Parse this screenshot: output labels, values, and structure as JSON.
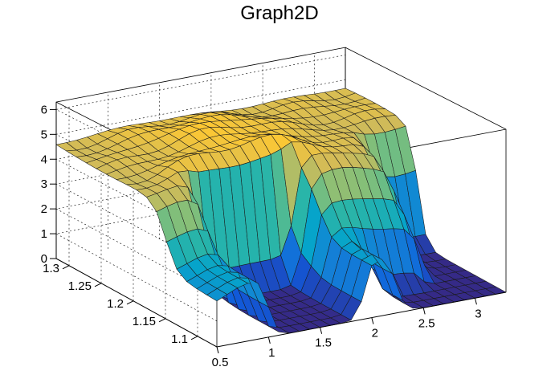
{
  "chart_data": {
    "type": "surface3d",
    "title": "Graph2D",
    "x_axis": {
      "range": [
        0.5,
        3.3
      ],
      "ticks": [
        "0.5",
        "1",
        "1.5",
        "2",
        "2.5",
        "3"
      ],
      "tick_values": [
        0.5,
        1,
        1.5,
        2,
        2.5,
        3
      ]
    },
    "y_axis": {
      "range": [
        1.07,
        1.32
      ],
      "ticks": [
        "1.1",
        "1.15",
        "1.2",
        "1.25",
        "1.3"
      ],
      "tick_values": [
        1.1,
        1.15,
        1.2,
        1.25,
        1.3
      ]
    },
    "z_axis": {
      "range": [
        0,
        6.3
      ],
      "ticks": [
        "0",
        "1",
        "2",
        "3",
        "4",
        "5",
        "6"
      ],
      "tick_values": [
        0,
        1,
        2,
        3,
        4,
        5,
        6
      ]
    },
    "grid": true,
    "colormap": [
      "#352a87",
      "#0f5cdd",
      "#1481d6",
      "#06a4ca",
      "#2eb7a4",
      "#87bf77",
      "#d1bb59",
      "#fec832",
      "#f9fb0e"
    ],
    "surface": {
      "x_cells": 28,
      "y_cells": 16,
      "z_range_note": "",
      "features": {
        "plateau_level": 4.6,
        "plateau_top": 5.6,
        "ridge_peak": 5.2,
        "low_region_level": 0.0
      }
    }
  }
}
